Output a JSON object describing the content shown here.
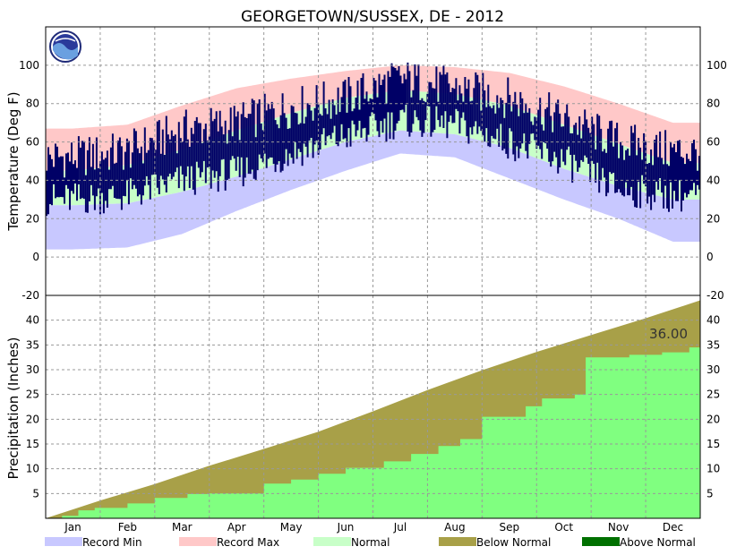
{
  "chart_data": {
    "type": "area",
    "title": "GEORGETOWN/SUSSEX, DE - 2012",
    "months": [
      "Jan",
      "Feb",
      "Mar",
      "Apr",
      "May",
      "Jun",
      "Jul",
      "Aug",
      "Sep",
      "Oct",
      "Nov",
      "Dec"
    ],
    "temperature": {
      "ylabel": "Temperature (Deg F)",
      "ylim": [
        -20,
        120
      ],
      "ticks": [
        -20,
        0,
        20,
        40,
        60,
        80,
        100
      ],
      "x_monthly": [
        1,
        2,
        3,
        4,
        5,
        6,
        7,
        8,
        9,
        10,
        11,
        12
      ],
      "record_max": [
        67,
        69,
        79,
        88,
        93,
        97,
        100,
        99,
        96,
        89,
        80,
        70
      ],
      "record_min": [
        4,
        5,
        12,
        24,
        35,
        45,
        54,
        52,
        41,
        30,
        20,
        8
      ],
      "normal_high": [
        45,
        48,
        56,
        66,
        75,
        83,
        87,
        85,
        79,
        69,
        59,
        49
      ],
      "normal_low": [
        27,
        28,
        34,
        42,
        51,
        60,
        66,
        64,
        57,
        46,
        37,
        30
      ],
      "observed_high": [
        52,
        55,
        66,
        70,
        78,
        83,
        93,
        88,
        83,
        72,
        60,
        55
      ],
      "observed_low": [
        30,
        32,
        40,
        44,
        54,
        63,
        71,
        69,
        60,
        50,
        35,
        32
      ]
    },
    "precipitation": {
      "ylabel": "Precipitation (Inches)",
      "ylim": [
        0,
        45
      ],
      "ticks": [
        5,
        10,
        15,
        20,
        25,
        30,
        35,
        40
      ],
      "normal_cumulative_x": [
        0,
        1,
        2,
        3,
        4,
        5,
        6,
        7,
        8,
        9,
        10,
        11,
        12
      ],
      "normal_cumulative": [
        0,
        3.6,
        6.9,
        10.6,
        14.0,
        17.5,
        21.6,
        25.9,
        29.9,
        33.6,
        37.0,
        40.4,
        44.0
      ],
      "observed_steps": [
        [
          0,
          0
        ],
        [
          0.3,
          0.5
        ],
        [
          0.6,
          1.6
        ],
        [
          0.9,
          2.1
        ],
        [
          1.5,
          3.0
        ],
        [
          2.0,
          4.1
        ],
        [
          2.6,
          4.9
        ],
        [
          3.0,
          5.0
        ],
        [
          3.7,
          5.0
        ],
        [
          4.0,
          7.0
        ],
        [
          4.5,
          7.8
        ],
        [
          5.0,
          9.0
        ],
        [
          5.5,
          10.2
        ],
        [
          6.2,
          11.5
        ],
        [
          6.7,
          13.0
        ],
        [
          7.2,
          14.6
        ],
        [
          7.6,
          16.0
        ],
        [
          8.0,
          20.5
        ],
        [
          8.8,
          22.6
        ],
        [
          9.1,
          24.2
        ],
        [
          9.7,
          25.0
        ],
        [
          9.9,
          32.5
        ],
        [
          10.7,
          33.0
        ],
        [
          11.3,
          33.5
        ],
        [
          11.8,
          34.5
        ],
        [
          12.0,
          36.0
        ]
      ],
      "total_label": "36.00"
    },
    "legend": [
      {
        "label": "Record Min",
        "color": "#c8c8ff"
      },
      {
        "label": "Record Max",
        "color": "#ffc8c8"
      },
      {
        "label": "Normal",
        "color": "#c8ffc8"
      },
      {
        "label": "Below Normal",
        "color": "#a8a048"
      },
      {
        "label": "Above Normal",
        "color": "#007000"
      }
    ],
    "colors": {
      "observed_temp": "#000066",
      "observed_precip": "#80ff80",
      "grid": "#999999"
    },
    "logo": "noaa-logo"
  }
}
